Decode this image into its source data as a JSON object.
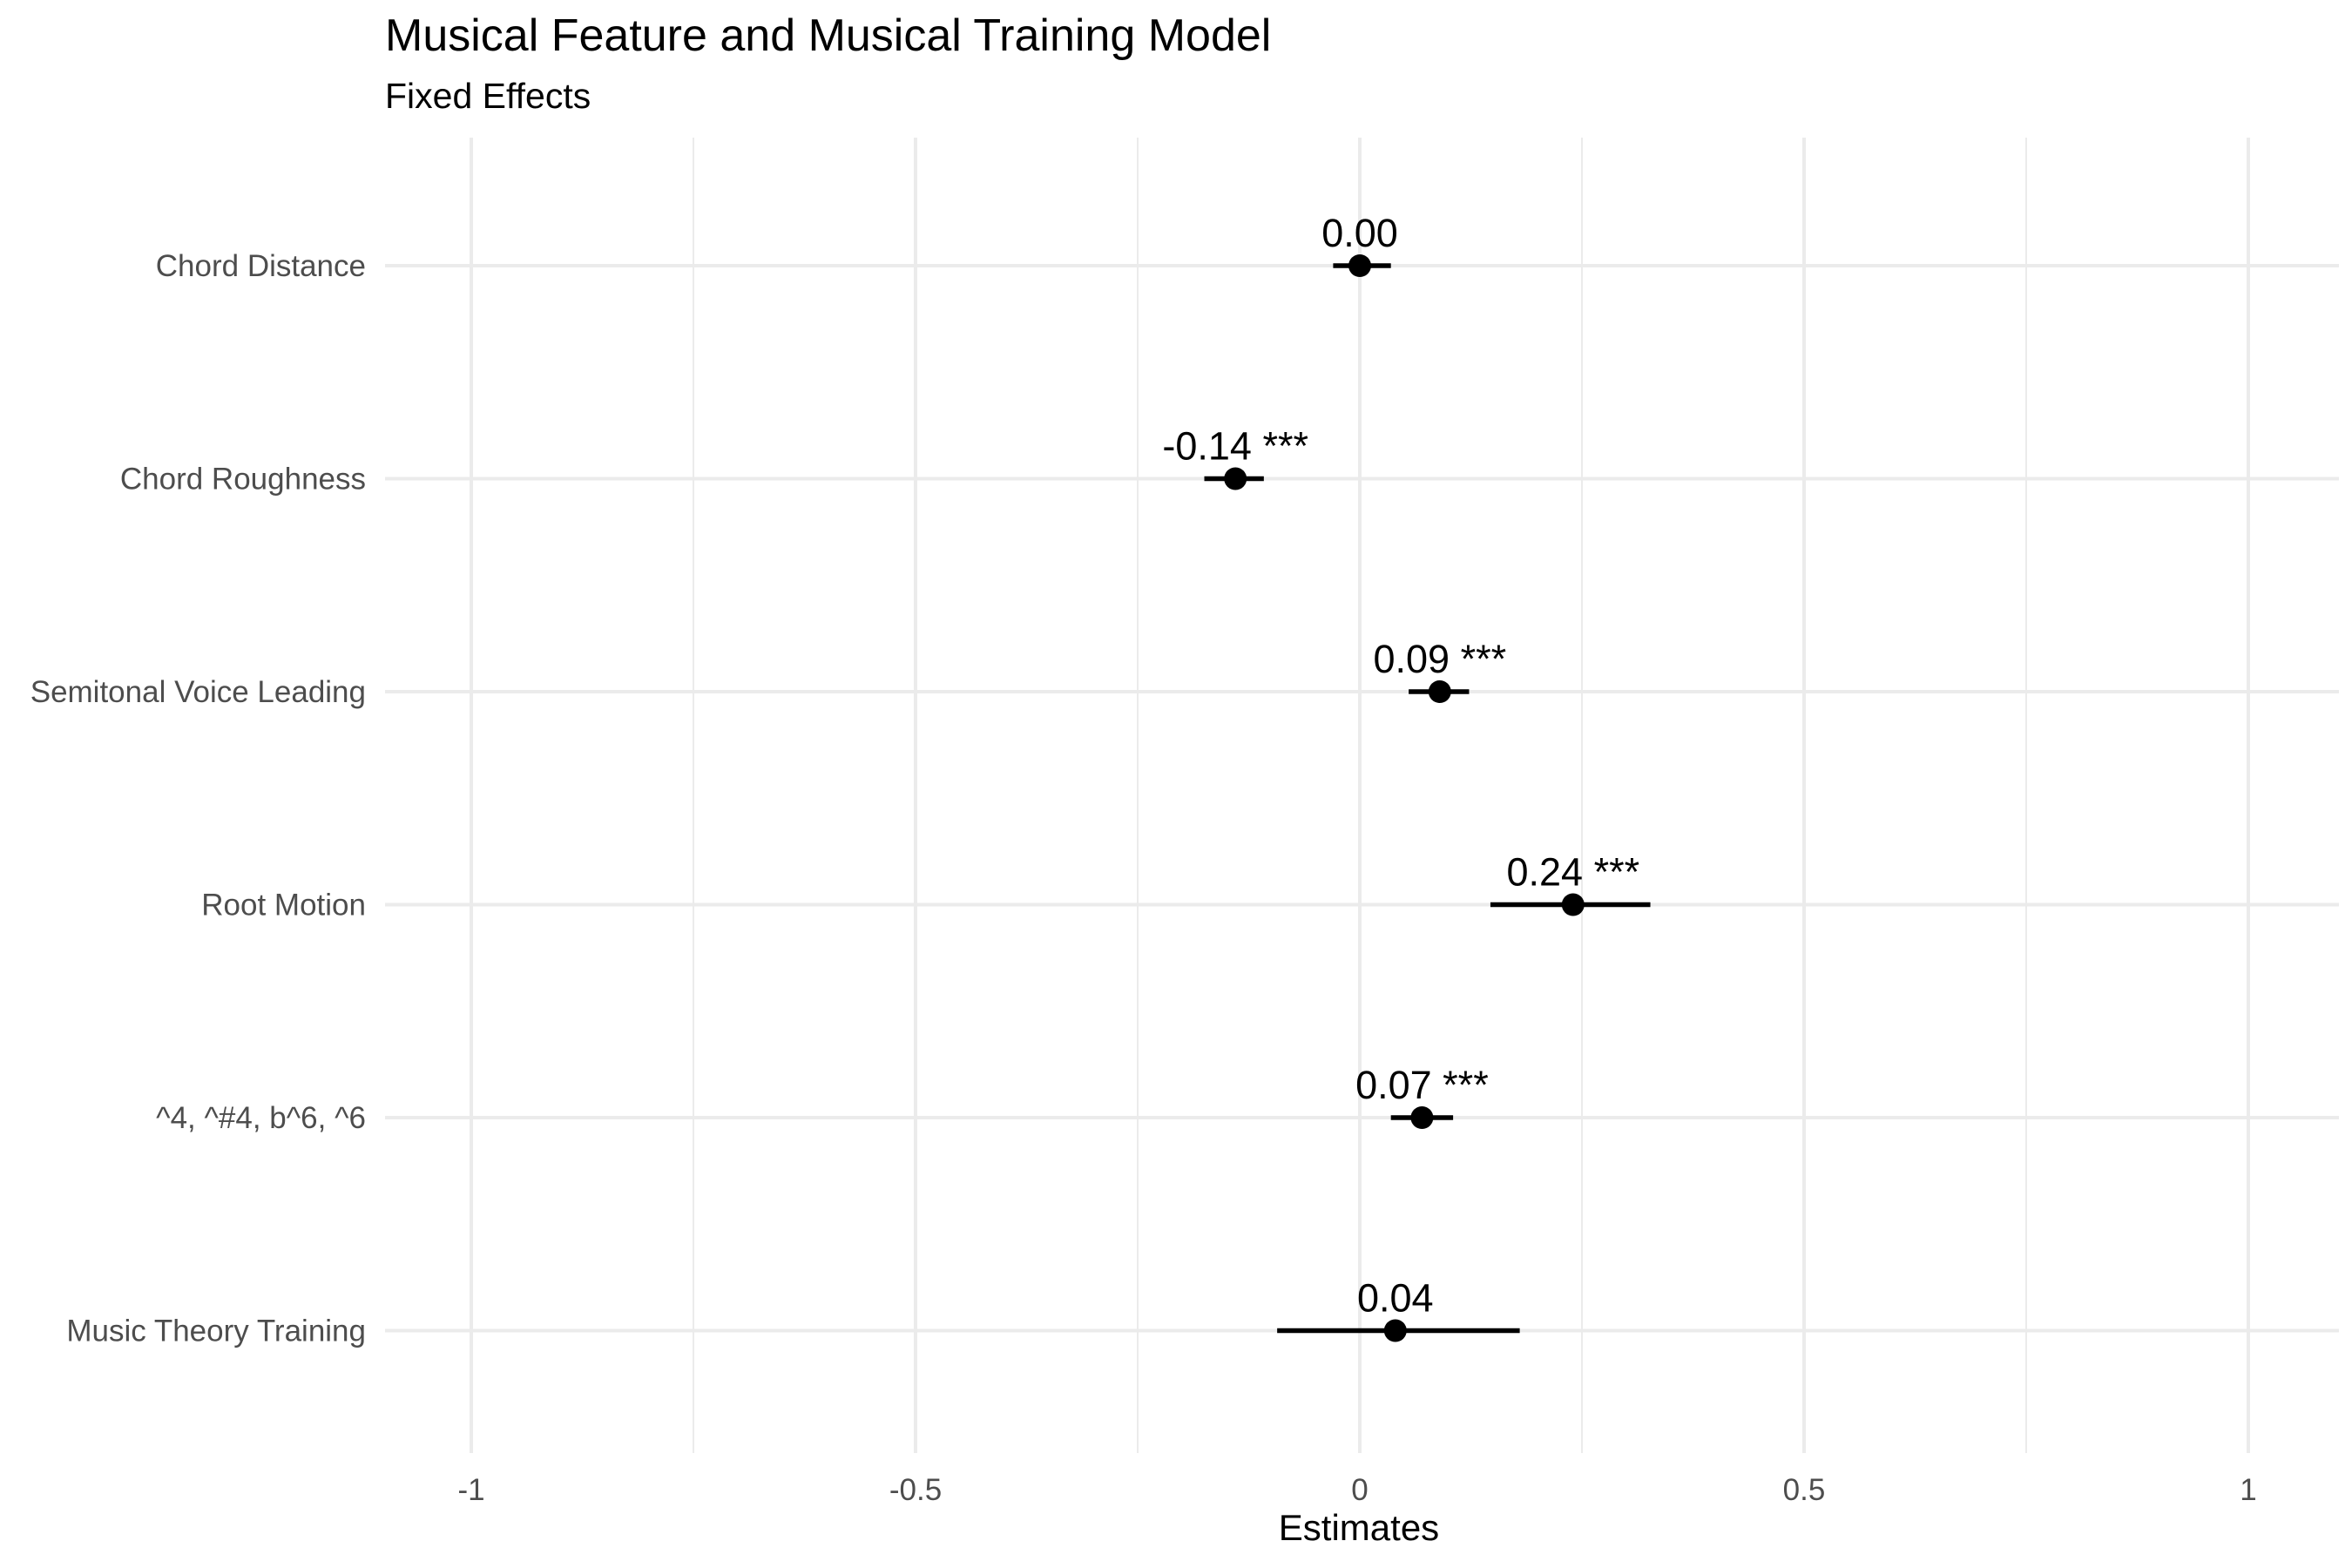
{
  "chart_data": {
    "type": "scatter",
    "title": "Musical Feature and Musical Training Model",
    "subtitle": "Fixed Effects",
    "xlabel": "Estimates",
    "ylabel": "",
    "xlim": [
      -1.1,
      1.1
    ],
    "xticks": [
      -1,
      -0.5,
      0,
      0.5,
      1
    ],
    "xtick_labels": [
      "-1",
      "-0.5",
      "0",
      "0.5",
      "1"
    ],
    "grid": true,
    "legend": "none",
    "terms": [
      {
        "name": "Chord Distance",
        "estimate": 0.0,
        "ci_low": -0.03,
        "ci_high": 0.035,
        "label": "0.00"
      },
      {
        "name": "Chord Roughness",
        "estimate": -0.14,
        "ci_low": -0.175,
        "ci_high": -0.108,
        "label": "-0.14 ***"
      },
      {
        "name": "Semitonal Voice Leading",
        "estimate": 0.09,
        "ci_low": 0.055,
        "ci_high": 0.123,
        "label": "0.09 ***"
      },
      {
        "name": "Root Motion",
        "estimate": 0.24,
        "ci_low": 0.147,
        "ci_high": 0.327,
        "label": "0.24 ***"
      },
      {
        "name": "^4, ^#4, b^6, ^6",
        "estimate": 0.07,
        "ci_low": 0.035,
        "ci_high": 0.105,
        "label": "0.07 ***"
      },
      {
        "name": "Music Theory Training",
        "estimate": 0.04,
        "ci_low": -0.093,
        "ci_high": 0.18,
        "label": "0.04"
      }
    ],
    "colors": {
      "point": "#000000",
      "grid": "#ebebeb",
      "tick_text": "#4d4d4d"
    }
  }
}
